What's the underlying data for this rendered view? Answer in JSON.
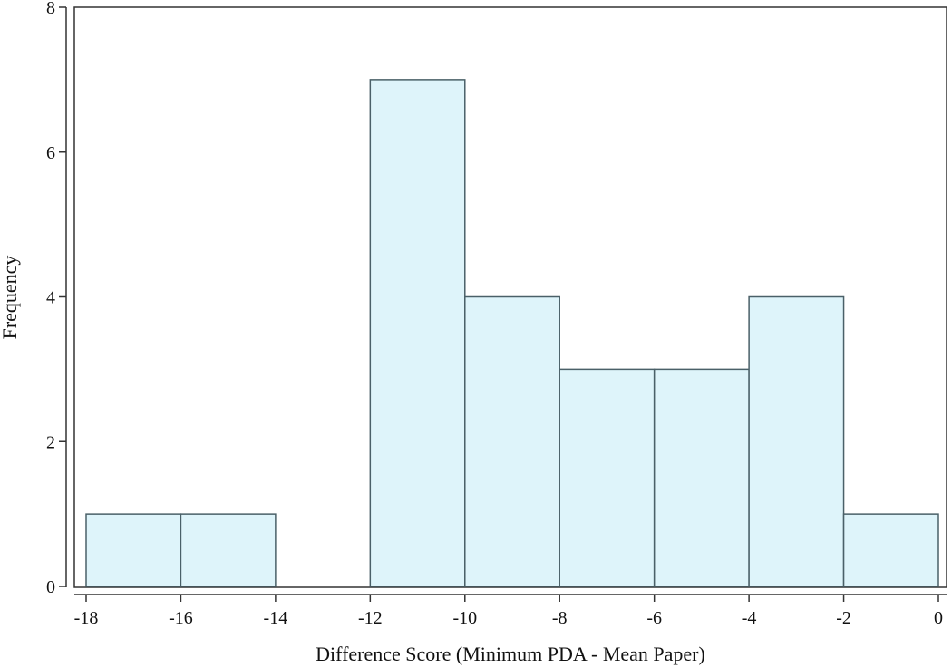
{
  "chart_data": {
    "type": "bar",
    "subtype": "histogram",
    "title": "",
    "xlabel": "Difference Score (Minimum PDA - Mean Paper)",
    "ylabel": "Frequency",
    "xlim": [
      -18,
      0
    ],
    "ylim": [
      0,
      8
    ],
    "x_ticks": [
      -18,
      -16,
      -14,
      -12,
      -10,
      -8,
      -6,
      -4,
      -2,
      0
    ],
    "y_ticks": [
      0,
      2,
      4,
      6,
      8
    ],
    "bins": [
      {
        "start": -18,
        "end": -16,
        "count": 1
      },
      {
        "start": -16,
        "end": -14,
        "count": 1
      },
      {
        "start": -14,
        "end": -12,
        "count": 0
      },
      {
        "start": -12,
        "end": -10,
        "count": 7
      },
      {
        "start": -10,
        "end": -8,
        "count": 4
      },
      {
        "start": -8,
        "end": -6,
        "count": 3
      },
      {
        "start": -6,
        "end": -4,
        "count": 3
      },
      {
        "start": -4,
        "end": -2,
        "count": 4
      },
      {
        "start": -2,
        "end": 0,
        "count": 1
      }
    ],
    "grid": false,
    "legend": "none",
    "colors": {
      "bar_fill": "#def4fa",
      "bar_stroke": "#4a6068",
      "axis": "#333333"
    }
  }
}
